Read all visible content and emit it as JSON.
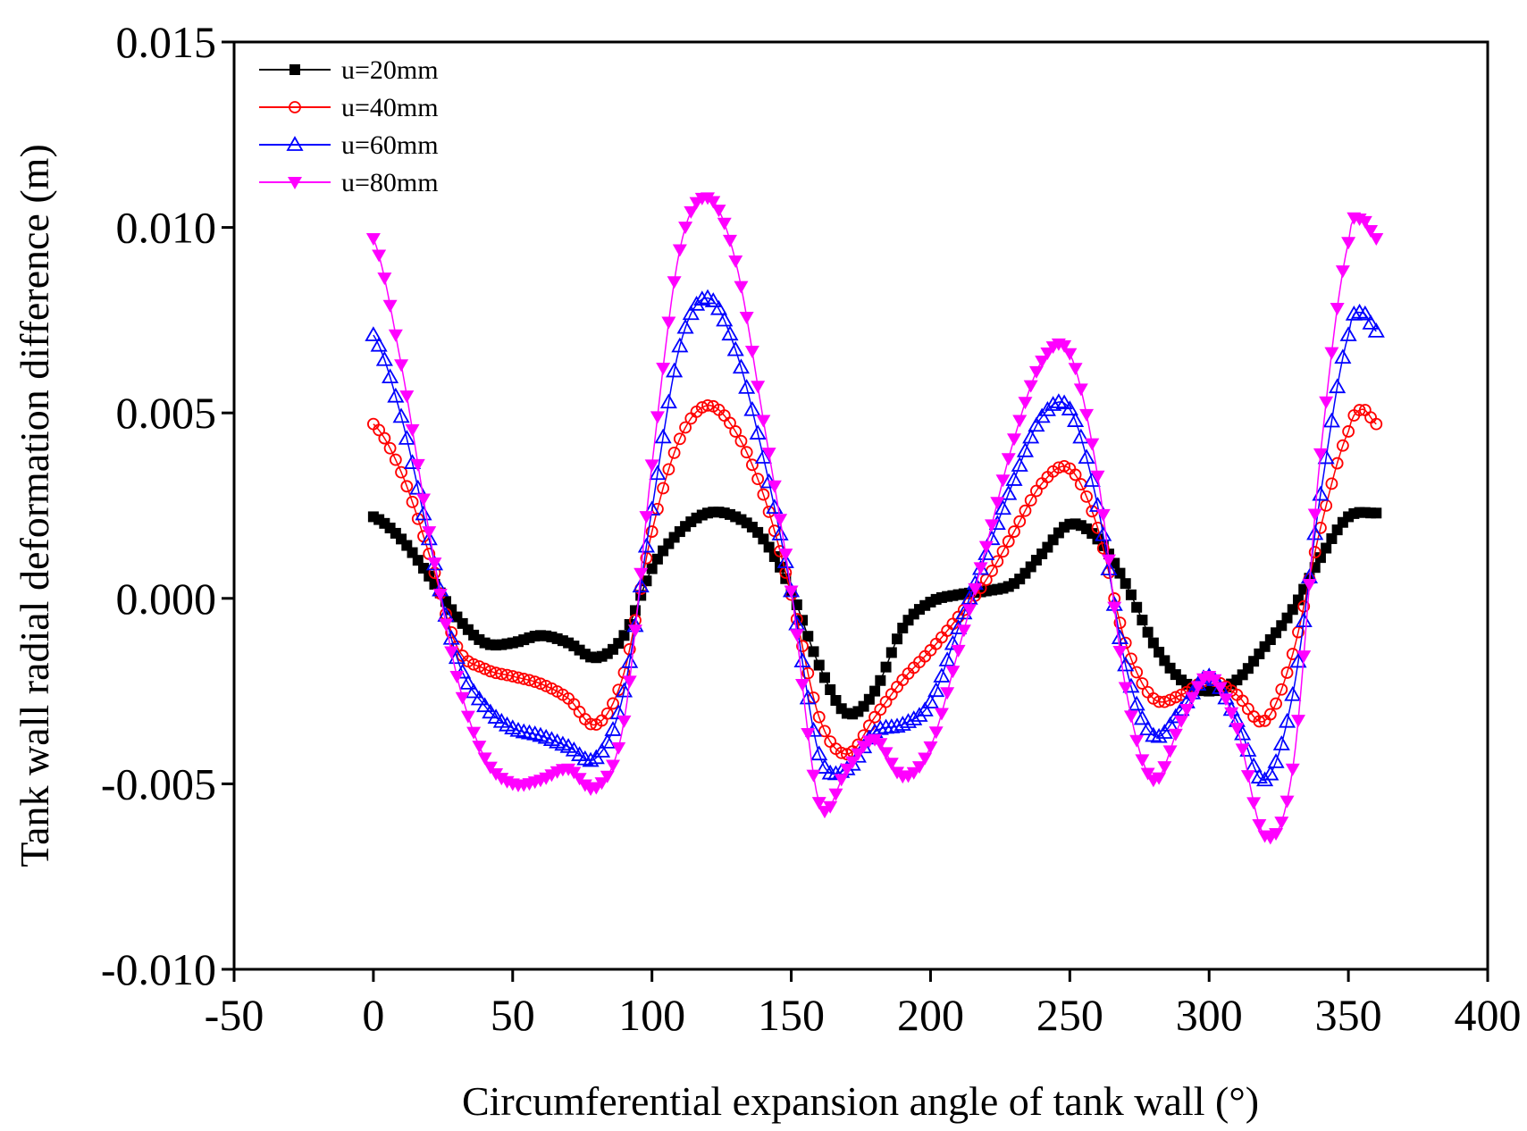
{
  "chart_data": {
    "type": "line",
    "title": "",
    "xlabel": "Circumferential expansion angle of tank wall (°)",
    "ylabel": "Tank wall radial deformation difference (m)",
    "xlim": [
      -50,
      400
    ],
    "ylim": [
      -0.01,
      0.015
    ],
    "xticks": [
      -50,
      0,
      50,
      100,
      150,
      200,
      250,
      300,
      350,
      400
    ],
    "yticks": [
      -0.01,
      -0.005,
      0.0,
      0.005,
      0.01,
      0.015
    ],
    "xtick_labels": [
      "-50",
      "0",
      "50",
      "100",
      "150",
      "200",
      "250",
      "300",
      "350",
      "400"
    ],
    "ytick_labels": [
      "-0.010",
      "-0.005",
      "0.000",
      "0.005",
      "0.010",
      "0.015"
    ],
    "grid": false,
    "legend_position": "top-left",
    "series": [
      {
        "name": "u=20mm",
        "color": "#000000",
        "marker": "square-filled",
        "x": [
          0,
          10,
          20,
          30,
          40,
          50,
          60,
          70,
          80,
          90,
          100,
          110,
          120,
          130,
          140,
          150,
          160,
          170,
          180,
          190,
          200,
          210,
          220,
          230,
          240,
          250,
          260,
          270,
          280,
          290,
          300,
          310,
          320,
          330,
          340,
          350,
          360
        ],
        "y": [
          0.0022,
          0.0016,
          0.0006,
          -0.0005,
          -0.0012,
          -0.0012,
          -0.001,
          -0.0012,
          -0.0016,
          -0.001,
          0.0008,
          0.0018,
          0.0023,
          0.0022,
          0.0016,
          0.0002,
          -0.0018,
          -0.0031,
          -0.0025,
          -0.0008,
          -0.0001,
          0.0001,
          0.0002,
          0.0004,
          0.0012,
          0.002,
          0.0016,
          0.0004,
          -0.0012,
          -0.0022,
          -0.0025,
          -0.0022,
          -0.0013,
          -0.0003,
          0.0011,
          0.0022,
          0.0023
        ]
      },
      {
        "name": "u=40mm",
        "color": "#ff0000",
        "marker": "circle-open",
        "x": [
          0,
          10,
          20,
          30,
          40,
          50,
          60,
          70,
          80,
          90,
          100,
          110,
          120,
          130,
          140,
          150,
          160,
          170,
          180,
          190,
          200,
          210,
          220,
          230,
          240,
          250,
          260,
          270,
          280,
          290,
          300,
          310,
          320,
          330,
          340,
          350,
          355,
          360
        ],
        "y": [
          0.0047,
          0.0034,
          0.0012,
          -0.0013,
          -0.0019,
          -0.0021,
          -0.0023,
          -0.0027,
          -0.0034,
          -0.002,
          0.0018,
          0.0043,
          0.0052,
          0.0045,
          0.0028,
          0.0001,
          -0.0032,
          -0.0042,
          -0.0032,
          -0.0022,
          -0.0014,
          -0.0005,
          0.0005,
          0.0018,
          0.0031,
          0.0035,
          0.0019,
          -0.0012,
          -0.0027,
          -0.0026,
          -0.0022,
          -0.0026,
          -0.0033,
          -0.0015,
          0.0019,
          0.0045,
          0.0051,
          0.0047
        ]
      },
      {
        "name": "u=60mm",
        "color": "#0000ff",
        "marker": "triangle-open",
        "x": [
          0,
          10,
          20,
          30,
          40,
          50,
          60,
          70,
          80,
          90,
          100,
          110,
          120,
          130,
          140,
          150,
          160,
          170,
          180,
          190,
          200,
          210,
          220,
          230,
          240,
          250,
          260,
          270,
          280,
          290,
          300,
          310,
          320,
          330,
          340,
          350,
          355,
          360
        ],
        "y": [
          0.0071,
          0.0049,
          0.0016,
          -0.0016,
          -0.0029,
          -0.0035,
          -0.0037,
          -0.004,
          -0.0043,
          -0.0025,
          0.0024,
          0.0068,
          0.0081,
          0.0067,
          0.0038,
          0.0002,
          -0.0042,
          -0.0046,
          -0.0036,
          -0.0034,
          -0.0028,
          -0.0008,
          0.0012,
          0.0032,
          0.0049,
          0.0051,
          0.0025,
          -0.0018,
          -0.0037,
          -0.003,
          -0.0021,
          -0.0033,
          -0.0049,
          -0.0026,
          0.0028,
          0.0071,
          0.0077,
          0.0072
        ]
      },
      {
        "name": "u=80mm",
        "color": "#ff00ff",
        "marker": "triangle-down-filled",
        "x": [
          0,
          10,
          20,
          30,
          40,
          50,
          60,
          70,
          80,
          90,
          100,
          110,
          120,
          130,
          140,
          150,
          160,
          170,
          180,
          190,
          200,
          210,
          220,
          230,
          240,
          250,
          260,
          270,
          280,
          290,
          300,
          310,
          320,
          330,
          340,
          350,
          355,
          360
        ],
        "y": [
          0.0097,
          0.0063,
          0.0018,
          -0.0021,
          -0.0043,
          -0.005,
          -0.0049,
          -0.0046,
          -0.0051,
          -0.0033,
          0.0036,
          0.0094,
          0.0108,
          0.0091,
          0.0048,
          0.0002,
          -0.0055,
          -0.0046,
          -0.0038,
          -0.0048,
          -0.004,
          -0.0014,
          0.0014,
          0.0043,
          0.0064,
          0.0066,
          0.0033,
          -0.0024,
          -0.0049,
          -0.0033,
          -0.0021,
          -0.0035,
          -0.0064,
          -0.0046,
          0.0039,
          0.0096,
          0.0102,
          0.0097
        ]
      }
    ]
  }
}
